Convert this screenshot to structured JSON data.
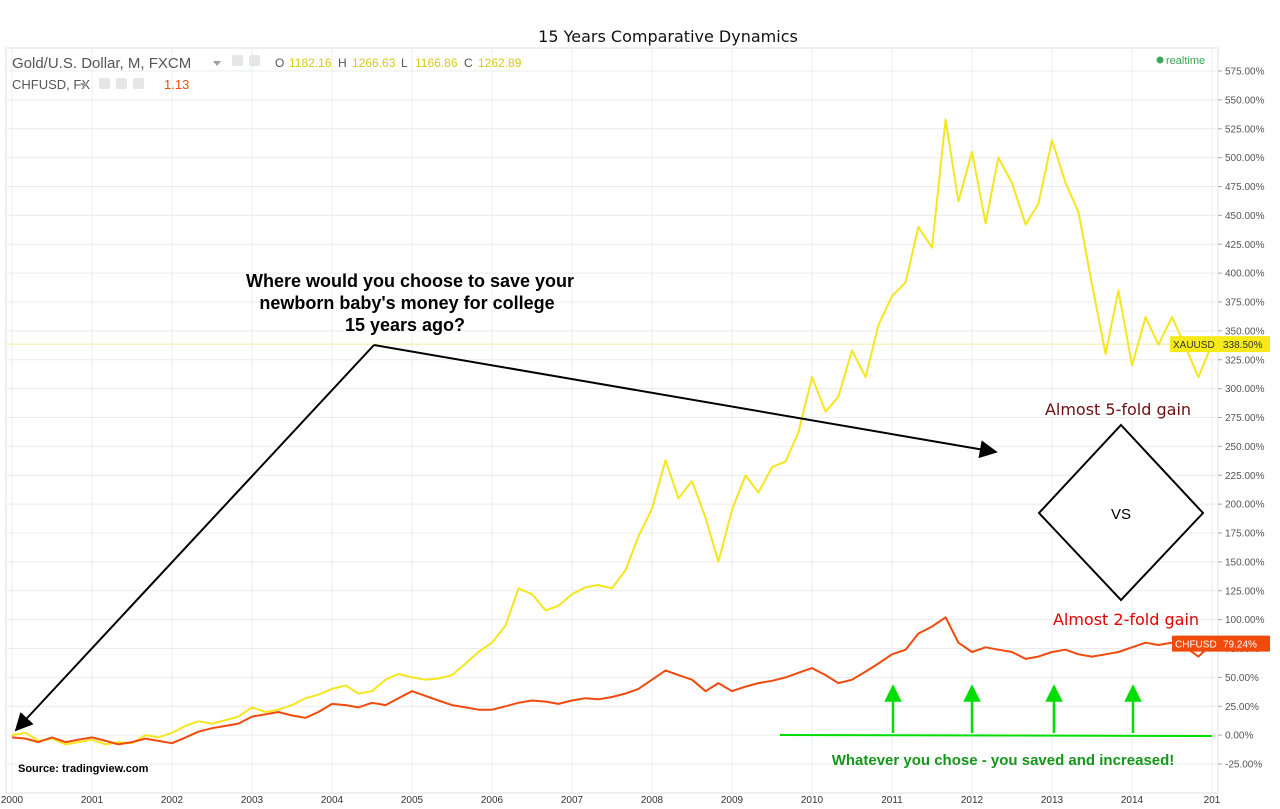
{
  "title": "15 Years Comparative Dynamics",
  "header": {
    "symbol": "Gold/U.S. Dollar, M, FXCM",
    "ohlc": [
      {
        "key": "O",
        "value": "1182.16"
      },
      {
        "key": "H",
        "value": "1266.63"
      },
      {
        "key": "L",
        "value": "1166.86"
      },
      {
        "key": "C",
        "value": "1262.89"
      }
    ],
    "compare_symbol": "CHFUSD, FX",
    "compare_value": "1.13",
    "realtime_label": "realtime"
  },
  "annotations": {
    "question": [
      "Where would you choose to save your",
      "newborn baby's money for college",
      "15 years ago?"
    ],
    "gold_gain": "Almost 5-fold gain",
    "chf_gain": "Almost 2-fold gain",
    "vs": "VS",
    "conclusion": "Whatever you chose - you saved and increased!",
    "source": "Source: tradingview.com"
  },
  "colors": {
    "gold": "#f5e61e",
    "chf": "#f04a0c",
    "green": "#00dd00",
    "conclusion_text": "#15961a",
    "gold_gain_text": "#6b0f0f",
    "chf_gain_text": "#e00000",
    "grid": "#e9ecef",
    "axis_text": "#555555",
    "realtime": "#3aa858"
  },
  "chart_data": {
    "type": "line",
    "x_ticks": [
      "2000",
      "2001",
      "2002",
      "2003",
      "2004",
      "2005",
      "2006",
      "2007",
      "2008",
      "2009",
      "2010",
      "2011",
      "2012",
      "2013",
      "2014",
      "201"
    ],
    "y_ticks": [
      "575.00%",
      "550.00%",
      "525.00%",
      "500.00%",
      "475.00%",
      "450.00%",
      "425.00%",
      "400.00%",
      "375.00%",
      "350.00%",
      "325.00%",
      "300.00%",
      "275.00%",
      "250.00%",
      "225.00%",
      "200.00%",
      "175.00%",
      "150.00%",
      "125.00%",
      "100.00%",
      "75.00%",
      "50.00%",
      "25.00%",
      "0.00%",
      "-25.00%"
    ],
    "ylim": [
      -25,
      575
    ],
    "xlim": [
      2000,
      2015
    ],
    "series": [
      {
        "name": "XAUUSD",
        "last_label": "XAUUSD",
        "last_value_label": "338.50%",
        "last_value": 338.5,
        "points": [
          [
            2000.0,
            0
          ],
          [
            2000.17,
            2
          ],
          [
            2000.33,
            -5
          ],
          [
            2000.5,
            -3
          ],
          [
            2000.67,
            -8
          ],
          [
            2000.83,
            -6
          ],
          [
            2001.0,
            -4
          ],
          [
            2001.17,
            -8
          ],
          [
            2001.33,
            -6
          ],
          [
            2001.5,
            -7
          ],
          [
            2001.67,
            0
          ],
          [
            2001.83,
            -2
          ],
          [
            2002.0,
            2
          ],
          [
            2002.17,
            8
          ],
          [
            2002.33,
            12
          ],
          [
            2002.5,
            10
          ],
          [
            2002.67,
            13
          ],
          [
            2002.83,
            16
          ],
          [
            2003.0,
            24
          ],
          [
            2003.17,
            20
          ],
          [
            2003.33,
            22
          ],
          [
            2003.5,
            26
          ],
          [
            2003.67,
            32
          ],
          [
            2003.83,
            35
          ],
          [
            2004.0,
            40
          ],
          [
            2004.17,
            43
          ],
          [
            2004.33,
            36
          ],
          [
            2004.5,
            38
          ],
          [
            2004.67,
            48
          ],
          [
            2004.83,
            53
          ],
          [
            2005.0,
            50
          ],
          [
            2005.17,
            48
          ],
          [
            2005.33,
            49
          ],
          [
            2005.5,
            52
          ],
          [
            2005.67,
            62
          ],
          [
            2005.83,
            72
          ],
          [
            2006.0,
            80
          ],
          [
            2006.17,
            95
          ],
          [
            2006.33,
            127
          ],
          [
            2006.5,
            122
          ],
          [
            2006.67,
            108
          ],
          [
            2006.83,
            112
          ],
          [
            2007.0,
            122
          ],
          [
            2007.17,
            128
          ],
          [
            2007.33,
            130
          ],
          [
            2007.5,
            127
          ],
          [
            2007.67,
            143
          ],
          [
            2007.83,
            172
          ],
          [
            2008.0,
            196
          ],
          [
            2008.17,
            238
          ],
          [
            2008.33,
            205
          ],
          [
            2008.5,
            220
          ],
          [
            2008.67,
            188
          ],
          [
            2008.83,
            150
          ],
          [
            2009.0,
            195
          ],
          [
            2009.17,
            225
          ],
          [
            2009.33,
            210
          ],
          [
            2009.5,
            232
          ],
          [
            2009.67,
            237
          ],
          [
            2009.83,
            262
          ],
          [
            2010.0,
            310
          ],
          [
            2010.17,
            280
          ],
          [
            2010.33,
            293
          ],
          [
            2010.5,
            333
          ],
          [
            2010.67,
            310
          ],
          [
            2010.83,
            355
          ],
          [
            2011.0,
            380
          ],
          [
            2011.17,
            392
          ],
          [
            2011.33,
            440
          ],
          [
            2011.5,
            422
          ],
          [
            2011.67,
            533
          ],
          [
            2011.83,
            462
          ],
          [
            2012.0,
            505
          ],
          [
            2012.17,
            443
          ],
          [
            2012.33,
            500
          ],
          [
            2012.5,
            478
          ],
          [
            2012.67,
            442
          ],
          [
            2012.83,
            460
          ],
          [
            2013.0,
            515
          ],
          [
            2013.17,
            478
          ],
          [
            2013.33,
            453
          ],
          [
            2013.5,
            390
          ],
          [
            2013.67,
            330
          ],
          [
            2013.83,
            385
          ],
          [
            2014.0,
            320
          ],
          [
            2014.17,
            362
          ],
          [
            2014.33,
            338
          ],
          [
            2014.5,
            362
          ],
          [
            2014.67,
            336
          ],
          [
            2014.83,
            310
          ],
          [
            2015.0,
            338.5
          ]
        ]
      },
      {
        "name": "CHFUSD",
        "last_label": "CHFUSD",
        "last_value_label": "79.24%",
        "last_value": 79.24,
        "points": [
          [
            2000.0,
            -2
          ],
          [
            2000.17,
            -3
          ],
          [
            2000.33,
            -6
          ],
          [
            2000.5,
            -2
          ],
          [
            2000.67,
            -6
          ],
          [
            2000.83,
            -4
          ],
          [
            2001.0,
            -2
          ],
          [
            2001.17,
            -5
          ],
          [
            2001.33,
            -8
          ],
          [
            2001.5,
            -6
          ],
          [
            2001.67,
            -3
          ],
          [
            2001.83,
            -5
          ],
          [
            2002.0,
            -7
          ],
          [
            2002.17,
            -2
          ],
          [
            2002.33,
            3
          ],
          [
            2002.5,
            6
          ],
          [
            2002.67,
            8
          ],
          [
            2002.83,
            10
          ],
          [
            2003.0,
            16
          ],
          [
            2003.17,
            18
          ],
          [
            2003.33,
            20
          ],
          [
            2003.5,
            17
          ],
          [
            2003.67,
            15
          ],
          [
            2003.83,
            20
          ],
          [
            2004.0,
            27
          ],
          [
            2004.17,
            26
          ],
          [
            2004.33,
            24
          ],
          [
            2004.5,
            28
          ],
          [
            2004.67,
            26
          ],
          [
            2004.83,
            32
          ],
          [
            2005.0,
            38
          ],
          [
            2005.17,
            34
          ],
          [
            2005.33,
            30
          ],
          [
            2005.5,
            26
          ],
          [
            2005.67,
            24
          ],
          [
            2005.83,
            22
          ],
          [
            2006.0,
            22
          ],
          [
            2006.17,
            25
          ],
          [
            2006.33,
            28
          ],
          [
            2006.5,
            30
          ],
          [
            2006.67,
            29
          ],
          [
            2006.83,
            27
          ],
          [
            2007.0,
            30
          ],
          [
            2007.17,
            32
          ],
          [
            2007.33,
            31
          ],
          [
            2007.5,
            33
          ],
          [
            2007.67,
            36
          ],
          [
            2007.83,
            40
          ],
          [
            2008.0,
            48
          ],
          [
            2008.17,
            56
          ],
          [
            2008.33,
            52
          ],
          [
            2008.5,
            48
          ],
          [
            2008.67,
            38
          ],
          [
            2008.83,
            45
          ],
          [
            2009.0,
            38
          ],
          [
            2009.17,
            42
          ],
          [
            2009.33,
            45
          ],
          [
            2009.5,
            47
          ],
          [
            2009.67,
            50
          ],
          [
            2009.83,
            54
          ],
          [
            2010.0,
            58
          ],
          [
            2010.17,
            52
          ],
          [
            2010.33,
            45
          ],
          [
            2010.5,
            48
          ],
          [
            2010.67,
            55
          ],
          [
            2010.83,
            62
          ],
          [
            2011.0,
            70
          ],
          [
            2011.17,
            74
          ],
          [
            2011.33,
            88
          ],
          [
            2011.5,
            94
          ],
          [
            2011.67,
            102
          ],
          [
            2011.83,
            80
          ],
          [
            2012.0,
            72
          ],
          [
            2012.17,
            76
          ],
          [
            2012.33,
            74
          ],
          [
            2012.5,
            72
          ],
          [
            2012.67,
            66
          ],
          [
            2012.83,
            68
          ],
          [
            2013.0,
            72
          ],
          [
            2013.17,
            74
          ],
          [
            2013.33,
            70
          ],
          [
            2013.5,
            68
          ],
          [
            2013.67,
            70
          ],
          [
            2013.83,
            72
          ],
          [
            2014.0,
            76
          ],
          [
            2014.17,
            80
          ],
          [
            2014.33,
            78
          ],
          [
            2014.5,
            80
          ],
          [
            2014.67,
            76
          ],
          [
            2014.83,
            68
          ],
          [
            2015.0,
            79.24
          ]
        ]
      }
    ],
    "grid": true,
    "legend": "top-left"
  }
}
